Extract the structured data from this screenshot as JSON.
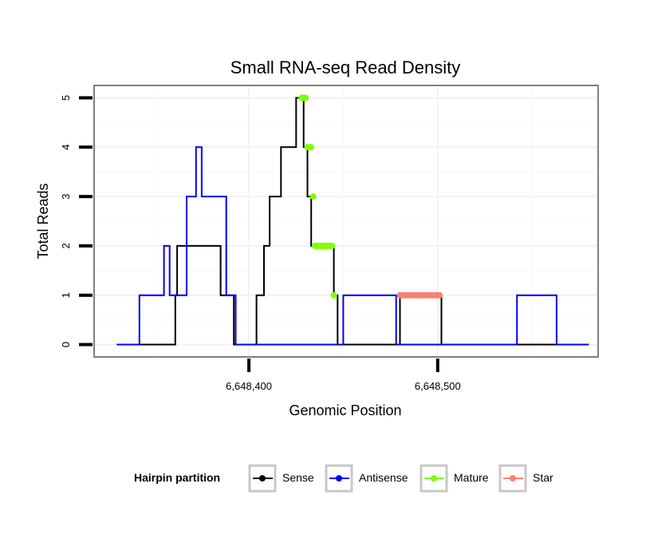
{
  "chart_data": {
    "type": "line",
    "title": "Small RNA-seq Read Density",
    "xlabel": "Genomic Position",
    "ylabel": "Total Reads",
    "xlim": [
      6648318,
      6648585
    ],
    "ylim": [
      -0.25,
      5.25
    ],
    "grid": true,
    "x_ticks": [
      6648400,
      6648500
    ],
    "x_tick_labels": [
      "6,648,400",
      "6,648,500"
    ],
    "y_ticks": [
      0,
      1,
      2,
      3,
      4,
      5
    ],
    "y_tick_labels": [
      "0",
      "1",
      "2",
      "3",
      "4",
      "5"
    ],
    "legend": {
      "title": "Hairpin partition",
      "position": "bottom",
      "entries": [
        "Sense",
        "Antisense",
        "Mature",
        "Star"
      ]
    },
    "series": [
      {
        "name": "Sense",
        "color": "#000000",
        "style": "line",
        "x": [
          6648330,
          6648361,
          6648361,
          6648362,
          6648362,
          6648385,
          6648385,
          6648392,
          6648392,
          6648404,
          6648404,
          6648408,
          6648408,
          6648411,
          6648411,
          6648417,
          6648417,
          6648425,
          6648425,
          6648429,
          6648429,
          6648431,
          6648431,
          6648433,
          6648433,
          6648436,
          6648436,
          6648437,
          6648437,
          6648445,
          6648445,
          6648447,
          6648447,
          6648480,
          6648480,
          6648502,
          6648502,
          6648580
        ],
        "y": [
          0,
          0,
          1,
          1,
          2,
          2,
          1,
          1,
          0,
          0,
          1,
          1,
          2,
          2,
          3,
          3,
          4,
          4,
          5,
          5,
          4,
          4,
          3,
          3,
          2,
          2,
          2,
          2,
          2,
          2,
          1,
          1,
          0,
          0,
          1,
          1,
          0,
          0
        ]
      },
      {
        "name": "Antisense",
        "color": "#0000ff",
        "style": "line",
        "x": [
          6648330,
          6648342,
          6648342,
          6648355,
          6648355,
          6648358,
          6648358,
          6648367,
          6648367,
          6648372,
          6648372,
          6648375,
          6648375,
          6648388,
          6648388,
          6648393,
          6648393,
          6648450,
          6648450,
          6648478,
          6648478,
          6648542,
          6648542,
          6648563,
          6648563,
          6648580
        ],
        "y": [
          0,
          0,
          1,
          1,
          2,
          2,
          1,
          1,
          3,
          3,
          4,
          4,
          3,
          3,
          1,
          1,
          0,
          0,
          1,
          1,
          0,
          0,
          1,
          1,
          0,
          0
        ]
      },
      {
        "name": "Mature",
        "color": "#7fff00",
        "style": "points",
        "x": [
          6648428,
          6648429,
          6648430,
          6648431,
          6648432,
          6648433,
          6648434,
          6648435,
          6648436,
          6648437,
          6648438,
          6648439,
          6648440,
          6648441,
          6648442,
          6648443,
          6648444,
          6648445
        ],
        "y": [
          5,
          5,
          5,
          4,
          4,
          4,
          3,
          2,
          2,
          2,
          2,
          2,
          2,
          2,
          2,
          2,
          2,
          1
        ]
      },
      {
        "name": "Star",
        "color": "#fa8072",
        "style": "points",
        "x": [
          6648480,
          6648481,
          6648482,
          6648483,
          6648484,
          6648485,
          6648486,
          6648487,
          6648488,
          6648489,
          6648490,
          6648491,
          6648492,
          6648493,
          6648494,
          6648495,
          6648496,
          6648497,
          6648498,
          6648499,
          6648500,
          6648501
        ],
        "y": [
          1,
          1,
          1,
          1,
          1,
          1,
          1,
          1,
          1,
          1,
          1,
          1,
          1,
          1,
          1,
          1,
          1,
          1,
          1,
          1,
          1,
          1
        ]
      }
    ]
  }
}
